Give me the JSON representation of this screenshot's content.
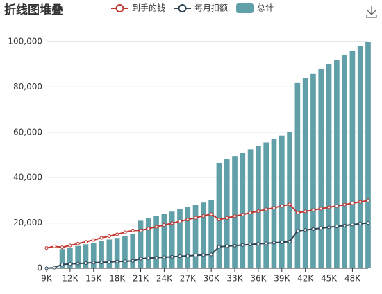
{
  "chart_data": {
    "type": "bar-line",
    "title": "折线图堆叠",
    "categories": [
      "9K",
      null,
      null,
      "12K",
      null,
      null,
      "15K",
      null,
      null,
      "18K",
      null,
      null,
      "21K",
      null,
      null,
      "24K",
      null,
      null,
      "27K",
      null,
      null,
      "30K",
      null,
      null,
      "33K",
      null,
      null,
      "36K",
      null,
      null,
      "39K",
      null,
      null,
      "42K",
      null,
      null,
      "45K",
      null,
      null,
      "48K",
      null,
      null
    ],
    "series": [
      {
        "name": "到手的钱",
        "type": "line",
        "color": "#c23531",
        "values": [
          9000,
          9700,
          9300,
          10100,
          10900,
          11700,
          12500,
          13400,
          14200,
          15000,
          15900,
          16700,
          16700,
          17500,
          18300,
          19100,
          19900,
          20700,
          21500,
          22300,
          23100,
          23900,
          21500,
          22200,
          23000,
          23700,
          24500,
          25200,
          26000,
          26700,
          27500,
          28200,
          24500,
          25100,
          25700,
          26300,
          26900,
          27500,
          28100,
          28700,
          29300,
          29900
        ]
      },
      {
        "name": "每月扣额",
        "type": "line",
        "color": "#2f4554",
        "values": [
          0,
          300,
          1700,
          1900,
          2100,
          2300,
          2500,
          2600,
          2800,
          3000,
          3100,
          3300,
          4300,
          4500,
          4700,
          4900,
          5100,
          5300,
          5500,
          5700,
          5900,
          6100,
          9500,
          9800,
          10000,
          10300,
          10500,
          10800,
          11000,
          11300,
          11500,
          11800,
          16500,
          16900,
          17300,
          17700,
          18100,
          18500,
          18900,
          19300,
          19700,
          20000
        ]
      },
      {
        "name": "总计",
        "type": "bar",
        "color": "#61a0a8",
        "values": [
          0,
          0,
          8500,
          9200,
          9900,
          10600,
          11300,
          12000,
          12700,
          13400,
          14100,
          15000,
          21000,
          22000,
          23000,
          24000,
          25000,
          26000,
          27000,
          28000,
          29000,
          30000,
          46500,
          48000,
          49500,
          51000,
          52500,
          54000,
          55500,
          57000,
          58500,
          60000,
          82000,
          84000,
          86000,
          88000,
          90000,
          92000,
          94000,
          96000,
          98000,
          100000
        ]
      }
    ],
    "ylim": [
      0,
      100000
    ],
    "yticks": [
      0,
      {
        "value": 20000,
        "label": "20,000"
      },
      {
        "value": 40000,
        "label": "40,000"
      },
      {
        "value": 60000,
        "label": "60,000"
      },
      {
        "value": 80000,
        "label": "80,000"
      },
      {
        "value": 100000,
        "label": "100,000"
      }
    ],
    "grid": true
  }
}
